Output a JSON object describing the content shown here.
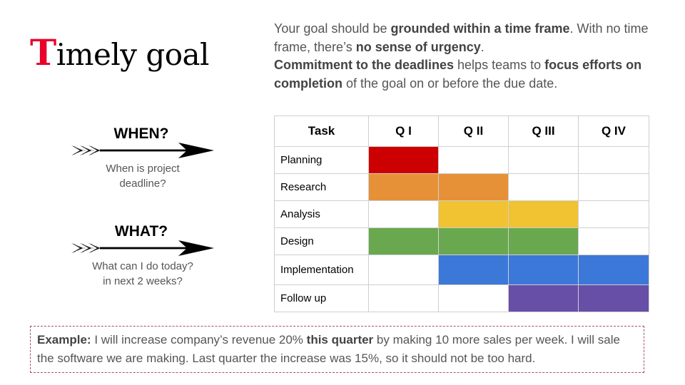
{
  "title": {
    "initial": "T",
    "rest": "imely goal"
  },
  "intro": {
    "line1": [
      {
        "text": "Your goal should be ",
        "bold": false
      },
      {
        "text": "grounded within a time frame",
        "bold": true
      },
      {
        "text": ". With no time frame, there’s ",
        "bold": false
      },
      {
        "text": "no sense of urgency",
        "bold": true
      },
      {
        "text": ".",
        "bold": false
      }
    ],
    "line2": [
      {
        "text": "Commitment to the deadlines",
        "bold": true
      },
      {
        "text": " helps teams to ",
        "bold": false
      },
      {
        "text": "focus efforts on completion",
        "bold": true
      },
      {
        "text": " of the goal on or before the due date.",
        "bold": false
      }
    ]
  },
  "cues": [
    {
      "label": "WHEN?",
      "sub": [
        "When is project",
        "deadline?"
      ],
      "icon": "arrow-icon"
    },
    {
      "label": "WHAT?",
      "sub": [
        "What can I do today?",
        "in next 2 weeks?"
      ],
      "icon": "arrow-icon"
    }
  ],
  "gantt": {
    "headers": [
      "Task",
      "Q I",
      "Q II",
      "Q III",
      "Q IV"
    ],
    "rows": [
      {
        "task": "Planning",
        "cells": [
          true,
          false,
          false,
          false
        ],
        "color": "#cc0000"
      },
      {
        "task": "Research",
        "cells": [
          true,
          true,
          false,
          false
        ],
        "color": "#e69138"
      },
      {
        "task": "Analysis",
        "cells": [
          false,
          true,
          true,
          false
        ],
        "color": "#f1c232"
      },
      {
        "task": "Design",
        "cells": [
          true,
          true,
          true,
          false
        ],
        "color": "#6aa84f"
      },
      {
        "task": "Implementation",
        "cells": [
          false,
          true,
          true,
          true
        ],
        "color": "#3c78d8"
      },
      {
        "task": "Follow up",
        "cells": [
          false,
          false,
          true,
          true
        ],
        "color": "#674ea7"
      }
    ]
  },
  "example": [
    {
      "text": "Example:",
      "bold": true
    },
    {
      "text": " I will increase company’s revenue 20% ",
      "bold": false
    },
    {
      "text": "this quarter",
      "bold": true
    },
    {
      "text": " by making 10 more sales per week. I will sale the software we are making. Last quarter the increase was 15%, so it should not be too hard.",
      "bold": false
    }
  ]
}
